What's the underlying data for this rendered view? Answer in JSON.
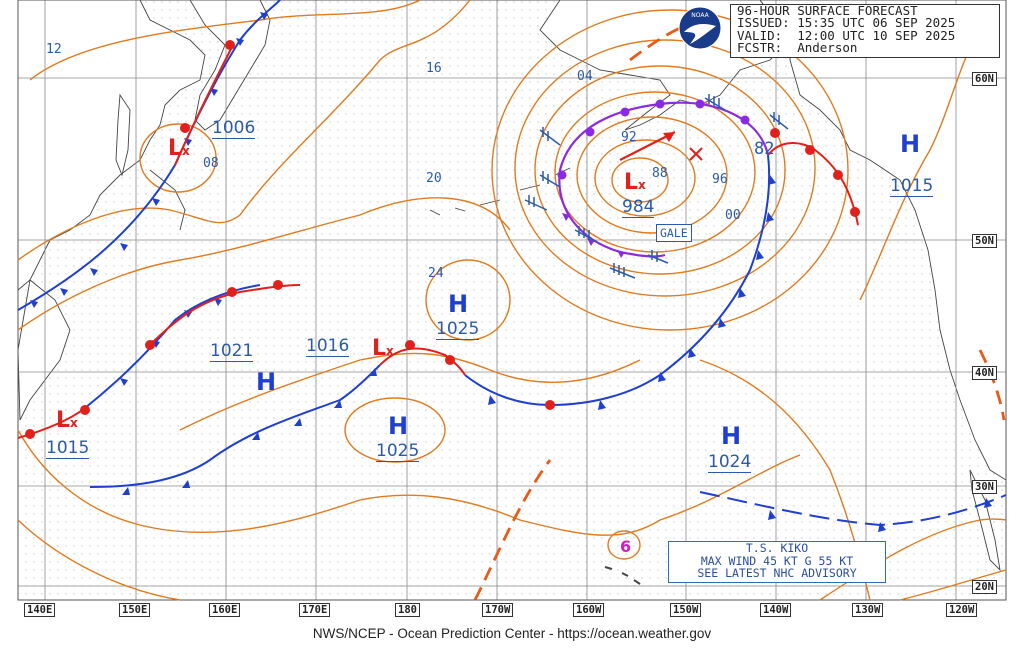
{
  "header": {
    "line1": "96-HOUR SURFACE FORECAST",
    "line2": "ISSUED: 15:35 UTC 06 SEP 2025",
    "line3": "VALID:  12:00 UTC 10 SEP 2025",
    "line4": "FCSTR:  Anderson"
  },
  "logo_text": "NOAA",
  "footer": "NWS/NCEP - Ocean Prediction Center - https://ocean.weather.gov",
  "advisory": {
    "line1": "T.S. KIKO",
    "line2": "MAX WIND 45 KT G 55 KT",
    "line3": "SEE LATEST NHC ADVISORY"
  },
  "gale_label": "GALE",
  "longitude_labels": [
    "140E",
    "150E",
    "160E",
    "170E",
    "180",
    "170W",
    "160W",
    "150W",
    "140W",
    "130W",
    "120W"
  ],
  "latitude_labels": [
    "60N",
    "50N",
    "40N",
    "30N",
    "20N"
  ],
  "systems": [
    {
      "type": "L",
      "pressure": "1006"
    },
    {
      "type": "L",
      "pressure": "984"
    },
    {
      "type": "L",
      "pressure": "1016"
    },
    {
      "type": "L",
      "pressure": "1015"
    },
    {
      "type": "H",
      "pressure": "1021"
    },
    {
      "type": "H",
      "pressure": "1025"
    },
    {
      "type": "H",
      "pressure": "1025"
    },
    {
      "type": "H",
      "pressure": "1024"
    },
    {
      "type": "H",
      "pressure": "1015"
    }
  ],
  "isobar_labels": [
    "12",
    "16",
    "20",
    "24",
    "08",
    "04",
    "00",
    "96",
    "92",
    "88",
    "82"
  ],
  "colors": {
    "isobar": "#e07b20",
    "cold_front": "#1f3fd0",
    "warm_front": "#e0201b",
    "occluded": "#8a2be2",
    "trough": "#e85a1a",
    "label": "#2b5aa8",
    "grid": "#8a8a8a"
  }
}
